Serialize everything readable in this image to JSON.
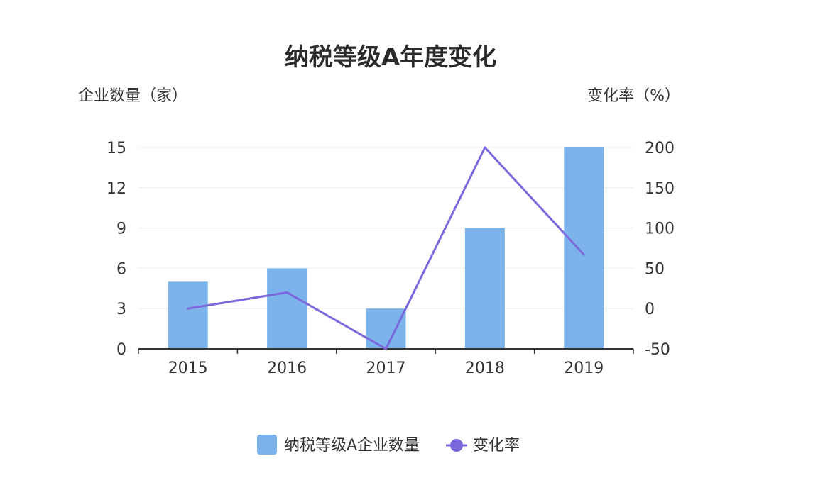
{
  "chart_data": {
    "type": "bar",
    "title": "纳税等级A年度变化",
    "xlabel": "",
    "ylabel": "企业数量（家）",
    "y2label": "变化率（%）",
    "categories": [
      "2015",
      "2016",
      "2017",
      "2018",
      "2019"
    ],
    "yticks": [
      "0",
      "3",
      "6",
      "9",
      "12",
      "15"
    ],
    "y2ticks": [
      "-50",
      "0",
      "50",
      "100",
      "150",
      "200"
    ],
    "ylim": [
      0,
      15
    ],
    "y2lim": [
      -50,
      200
    ],
    "grid": true,
    "legend_position": "bottom",
    "series": [
      {
        "name": "纳税等级A企业数量",
        "type": "bar",
        "axis": "left",
        "color": "#7cb3ea",
        "values": [
          5,
          6,
          3,
          9,
          15
        ]
      },
      {
        "name": "变化率",
        "type": "line",
        "axis": "right",
        "color": "#7b68dc",
        "values": [
          0,
          20,
          -50,
          200,
          67
        ]
      }
    ]
  }
}
